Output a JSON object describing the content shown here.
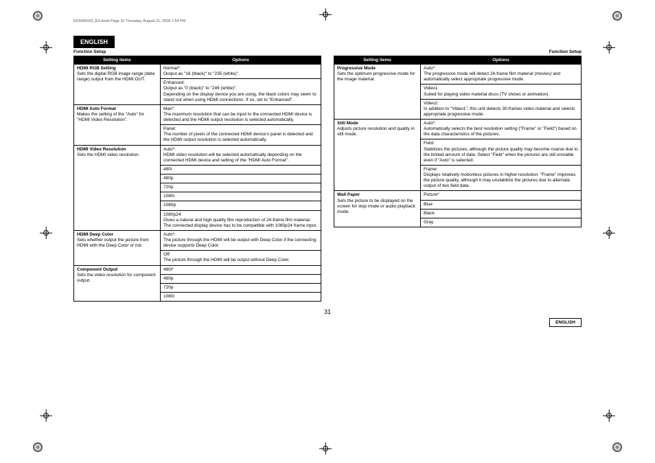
{
  "header_line": "E5SH60UD_EN.book  Page 31  Thursday, August 21, 2008  1:54 PM",
  "lang_tab": "ENGLISH",
  "section_left": "Function Setup",
  "section_right": "Function Setup",
  "th_setting": "Setting items",
  "th_options": "Options",
  "page_number": "31",
  "footer_lang": "ENGLISH",
  "left_table": [
    {
      "title": "HDMI RGB Setting",
      "desc": "Sets the digital RGB image range (data range) output from the HDMI OUT.",
      "options": [
        "Normal*:\nOutput as \"16 (black)\" to \"235 (white)\".",
        "Enhanced:\nOutput as \"0 (black)\" to \"246 (white)\".\nDepending on the display device you are using, the black colors may seem to stand out when using HDMI connections. If so, set to \"Enhanced\"."
      ]
    },
    {
      "title": "HDMI Auto Format",
      "desc": "Makes the setting of the \"Auto\" for \"HDMI Video Resolution\".",
      "options": [
        "Max*:\nThe maximum resolution that can be input to the connected HDMI device is detected and the HDMI output resolution is selected automatically.",
        "Panel:\nThe number of pixels of the connected HDMI device's panel is detected and the HDMI output resolution is selected automatically."
      ]
    },
    {
      "title": "HDMI Video Resolution",
      "desc": "Sets the HDMI video resolution.",
      "options": [
        "Auto*:\nHDMI video resolution will be selected automatically depending on the connected HDMI device and setting of the \"HDMI Auto Format\".",
        "480i",
        "480p",
        "720p",
        "1080i",
        "1080p",
        "1080p24:\nGives a natural and high quality film reproduction of 24-frame film material. The connected display device has to be compatible with 1080p24 frame input."
      ]
    },
    {
      "title": "HDMI Deep Color",
      "desc": "Sets whether output the picture from HDMI with the Deep Color or not.",
      "options": [
        "Auto*:\nThe picture through the HDMI will be output with Deep Color if the connecting device supports Deep Color.",
        "Off:\nThe picture through the HDMI will be output without Deep Color."
      ]
    },
    {
      "title": "Component Output",
      "desc": "Sets the video resolution for component output.",
      "options": [
        "480i*",
        "480p",
        "720p",
        "1080i"
      ]
    }
  ],
  "right_table": [
    {
      "title": "Progressive Mode",
      "desc": "Sets the optimum progressive mode for the image material.",
      "options": [
        "Auto*:\nThe progressive mode will detect 24-frame film material (movies) and automatically select appropriate progressive mode.",
        "Video1:\nSuited for playing video material discs (TV shows or animation).",
        "Video2:\nIn addition to \"Video1\", this unit detects 30-frames video material and selects appropriate progressive mode."
      ]
    },
    {
      "title": "Still Mode",
      "desc": "Adjusts picture resolution and quality in still mode.",
      "options": [
        "Auto*:\nAutomatically selects the best resolution setting (\"Frame\" or \"Field\") based on the data characteristics of the pictures.",
        "Field:\nStabilizes the pictures, although the picture quality may become coarse due to the limited amount of data. Select \"Field\" when the pictures are still unstable even if \"Auto\" is selected.",
        "Frame:\nDisplays relatively motionless pictures in higher resolution. \"Frame\" improves the picture quality, although it may unstabilize the pictures due to alternate output of two field data."
      ]
    },
    {
      "title": "Wall Paper",
      "desc": "Sets the picture to be displayed on the screen for stop mode or audio playback mode.",
      "options": [
        "Picture*",
        "Blue",
        "Black",
        "Gray"
      ]
    }
  ]
}
